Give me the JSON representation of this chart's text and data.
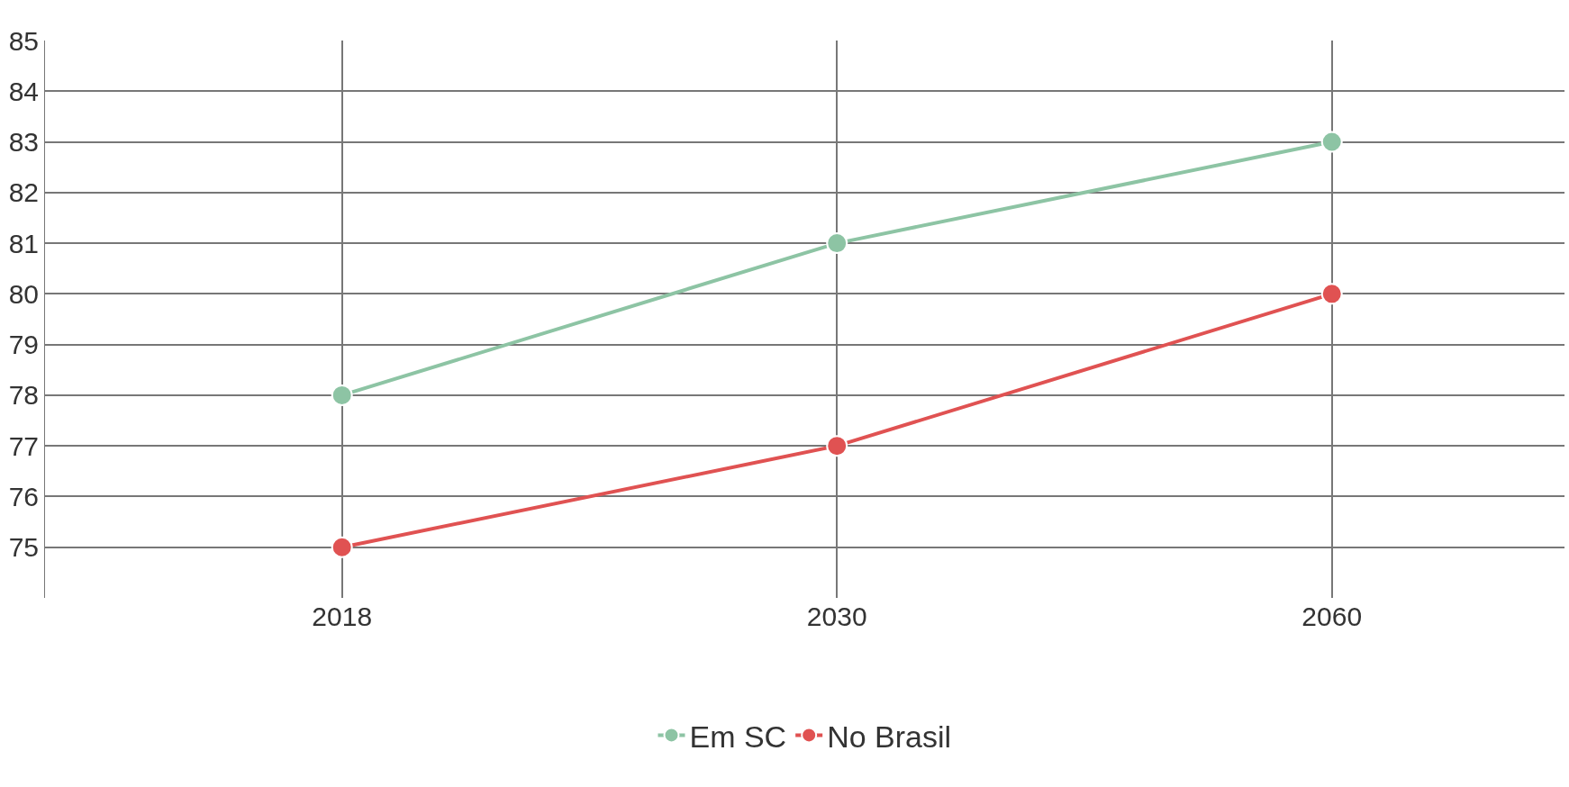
{
  "chart_data": {
    "type": "line",
    "categories": [
      "2018",
      "2030",
      "2060"
    ],
    "series": [
      {
        "name": "Em SC",
        "color": "#8dc4a4",
        "values": [
          78,
          81,
          83
        ]
      },
      {
        "name": "No Brasil",
        "color": "#e05252",
        "values": [
          75,
          77,
          80
        ]
      }
    ],
    "ylim": [
      74,
      85
    ],
    "yticks": [
      75,
      76,
      77,
      78,
      79,
      80,
      81,
      82,
      83,
      84,
      85
    ],
    "grid": true,
    "legend": "bottom",
    "marker": "circle",
    "line_style": "solid"
  }
}
